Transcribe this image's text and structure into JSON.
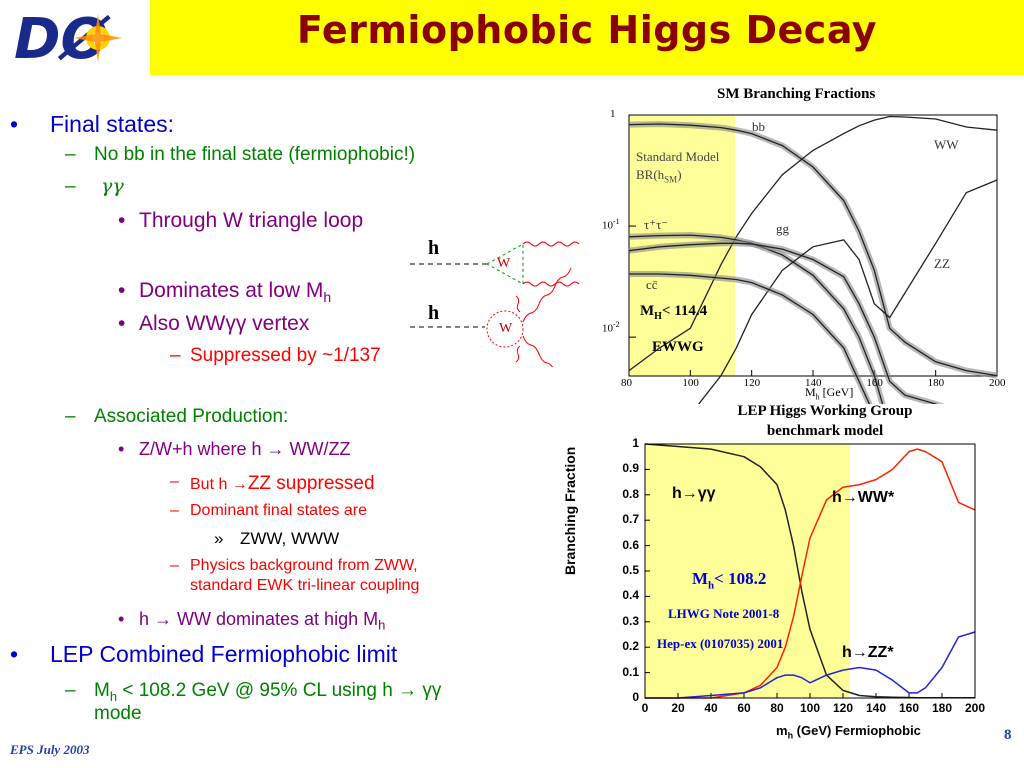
{
  "title": "Fermiophobic Higgs Decay",
  "logo_text": "DØ",
  "bullets": {
    "final_states": "Final states:",
    "no_bb": "No bb in the final state (fermiophobic!)",
    "gamma_gamma": "γγ",
    "through_w": "Through W triangle loop",
    "dominates_low_pre": "Dominates at low M",
    "dominates_low_sub": "h",
    "also_ww": "Also WWγγ vertex",
    "suppressed": "Suppressed by ~1/137",
    "associated": "Associated Production:",
    "zw_h": "Z/W+h where h → WW/ZZ",
    "but_h_pre": "But h →",
    "but_h_post": "ZZ suppressed",
    "dominant_final": "Dominant final states are",
    "zww_www": "ZWW,  WWW",
    "physics_bg_1": "Physics background from ZWW,",
    "physics_bg_2": "standard EWK tri-linear coupling",
    "h_ww_high_pre": "h → WW dominates at high M",
    "h_ww_high_sub": "h",
    "lep_combined": "LEP Combined Fermiophobic limit",
    "mh_limit_pre": "M",
    "mh_limit_sub": "h",
    "mh_limit_post": " < 108.2 GeV @ 95% CL using h → γγ",
    "mh_limit_line2": "mode"
  },
  "markers": {
    "bullet": "•",
    "dash": "–",
    "raquo": "»"
  },
  "feynman": {
    "h": "h",
    "w": "W"
  },
  "chart_top": {
    "title": "SM Branching Fractions",
    "legend_1": "Standard Model",
    "legend_2": "BR(h",
    "legend_2_sub": "SM",
    "legend_2_end": ")",
    "curve_labels": {
      "bb": "bb",
      "ww": "WW",
      "tautau": "τ⁺τ⁻",
      "gg": "gg",
      "zz": "ZZ",
      "cc": "cc̄"
    },
    "annot_mh_pre": "M",
    "annot_mh_sub": "H",
    "annot_mh_post": "< 114.4",
    "annot_ewwg": "EWWG",
    "xlabel_pre": "M",
    "xlabel_sub": "h",
    "xlabel_post": "  [GeV]",
    "y_ticks": {
      "t1": "1",
      "t01_base": "10",
      "t01_exp": "-1",
      "t001_base": "10",
      "t001_exp": "-2"
    },
    "x_ticks": [
      "80",
      "100",
      "120",
      "140",
      "160",
      "180",
      "200"
    ]
  },
  "chart_bottom_heading_1": "LEP  Higgs Working Group",
  "chart_bottom_heading_2": "benchmark model",
  "chart_data": [
    {
      "type": "line",
      "title": "SM Branching Fractions",
      "xlabel": "Mh [GeV]",
      "ylabel": "",
      "xlim": [
        80,
        200
      ],
      "ylim_log10": [
        -2.35,
        0
      ],
      "log_scale_y": true,
      "x": [
        80,
        90,
        100,
        110,
        115,
        120,
        130,
        140,
        150,
        155,
        160,
        165,
        170,
        180,
        190,
        200
      ],
      "series": [
        {
          "name": "bb",
          "values": [
            0.82,
            0.83,
            0.81,
            0.77,
            0.73,
            0.68,
            0.53,
            0.34,
            0.17,
            0.09,
            0.04,
            0.012,
            0.009,
            0.006,
            0.005,
            0.0045
          ]
        },
        {
          "name": "WW",
          "values": [
            0.005,
            0.008,
            0.012,
            0.045,
            0.08,
            0.13,
            0.29,
            0.48,
            0.68,
            0.8,
            0.9,
            0.97,
            0.96,
            0.92,
            0.78,
            0.73
          ]
        },
        {
          "name": "τ⁺τ⁻",
          "values": [
            0.08,
            0.082,
            0.083,
            0.079,
            0.075,
            0.07,
            0.055,
            0.036,
            0.018,
            0.01,
            0.0045,
            0.0015,
            0.001,
            0.0008,
            0.0006,
            0.0005
          ]
        },
        {
          "name": "gg",
          "values": [
            0.06,
            0.065,
            0.068,
            0.07,
            0.07,
            0.069,
            0.062,
            0.05,
            0.035,
            0.02,
            0.01,
            0.004,
            0.003,
            0.0025,
            0.002,
            0.0018
          ]
        },
        {
          "name": "ZZ",
          "values": [
            0.0008,
            0.0012,
            0.002,
            0.0045,
            0.008,
            0.016,
            0.04,
            0.065,
            0.075,
            0.05,
            0.02,
            0.015,
            0.025,
            0.07,
            0.2,
            0.26
          ]
        },
        {
          "name": "cc̄",
          "values": [
            0.037,
            0.037,
            0.036,
            0.034,
            0.033,
            0.031,
            0.024,
            0.016,
            0.008,
            0.004,
            0.002,
            0.0007,
            0.0005,
            0.0004,
            0.0003,
            0.0003
          ]
        }
      ]
    },
    {
      "type": "line",
      "title": "",
      "xlabel": "m_h (GeV) Fermiophobic",
      "ylabel": "Branching Fraction",
      "xlim": [
        0,
        200
      ],
      "ylim": [
        0,
        1
      ],
      "x_ticks": [
        0,
        20,
        40,
        60,
        80,
        100,
        120,
        140,
        160,
        180,
        200
      ],
      "y_ticks": [
        0,
        0.1,
        0.2,
        0.3,
        0.4,
        0.5,
        0.6,
        0.7,
        0.8,
        0.9,
        1
      ],
      "x": [
        0,
        20,
        40,
        60,
        70,
        80,
        85,
        90,
        95,
        100,
        110,
        120,
        130,
        140,
        150,
        160,
        165,
        170,
        180,
        190,
        200
      ],
      "series": [
        {
          "name": "h→γγ",
          "values": [
            1.0,
            0.99,
            0.98,
            0.95,
            0.91,
            0.84,
            0.74,
            0.6,
            0.42,
            0.27,
            0.09,
            0.03,
            0.01,
            0.005,
            0.003,
            0.002,
            0.001,
            0.001,
            0.001,
            0.001,
            0.001
          ]
        },
        {
          "name": "h→WW*",
          "values": [
            0.0,
            0.0,
            0.0,
            0.02,
            0.05,
            0.12,
            0.2,
            0.32,
            0.48,
            0.63,
            0.78,
            0.83,
            0.84,
            0.86,
            0.9,
            0.97,
            0.98,
            0.97,
            0.93,
            0.77,
            0.74
          ]
        },
        {
          "name": "h→ZZ*",
          "values": [
            0.0,
            0.0,
            0.01,
            0.02,
            0.04,
            0.08,
            0.09,
            0.09,
            0.08,
            0.06,
            0.09,
            0.11,
            0.12,
            0.11,
            0.07,
            0.02,
            0.02,
            0.04,
            0.12,
            0.24,
            0.26
          ]
        }
      ]
    }
  ],
  "chart_bottom": {
    "ylabel": "Branching Fraction",
    "xlabel_pre": "m",
    "xlabel_sub": "h",
    "xlabel_post": " (GeV) Fermiophobic",
    "curve_gg_pre": "h",
    "curve_gg_post": "→γγ",
    "curve_ww_pre": "h",
    "curve_ww_post": "→WW*",
    "curve_zz_pre": "h",
    "curve_zz_post": "→ZZ*",
    "annot_mh_pre": "M",
    "annot_mh_sub": "h",
    "annot_mh_post": "< 108.2",
    "annot_note": "LHWG Note 2001-8",
    "annot_hepex": "Hep-ex (0107035) 2001",
    "y_tick_labels": [
      "0",
      "0.1",
      "0.2",
      "0.3",
      "0.4",
      "0.5",
      "0.6",
      "0.7",
      "0.8",
      "0.9",
      "1"
    ],
    "x_tick_labels": [
      "0",
      "20",
      "40",
      "60",
      "80",
      "100",
      "120",
      "140",
      "160",
      "180",
      "200"
    ]
  },
  "footer": {
    "left": "EPS July 2003",
    "page": "8"
  },
  "colors": {
    "title": "#8b0000",
    "header_bg": "#ffff00",
    "level1": "#0000cc",
    "level2": "#008000",
    "level3": "#800080",
    "level4": "#ff0000",
    "highlight_band": "#ffff99",
    "curve_gg": "#222222",
    "curve_ww": "#ff2200",
    "curve_zz": "#2222dd",
    "footer": "#1f3ea8"
  }
}
